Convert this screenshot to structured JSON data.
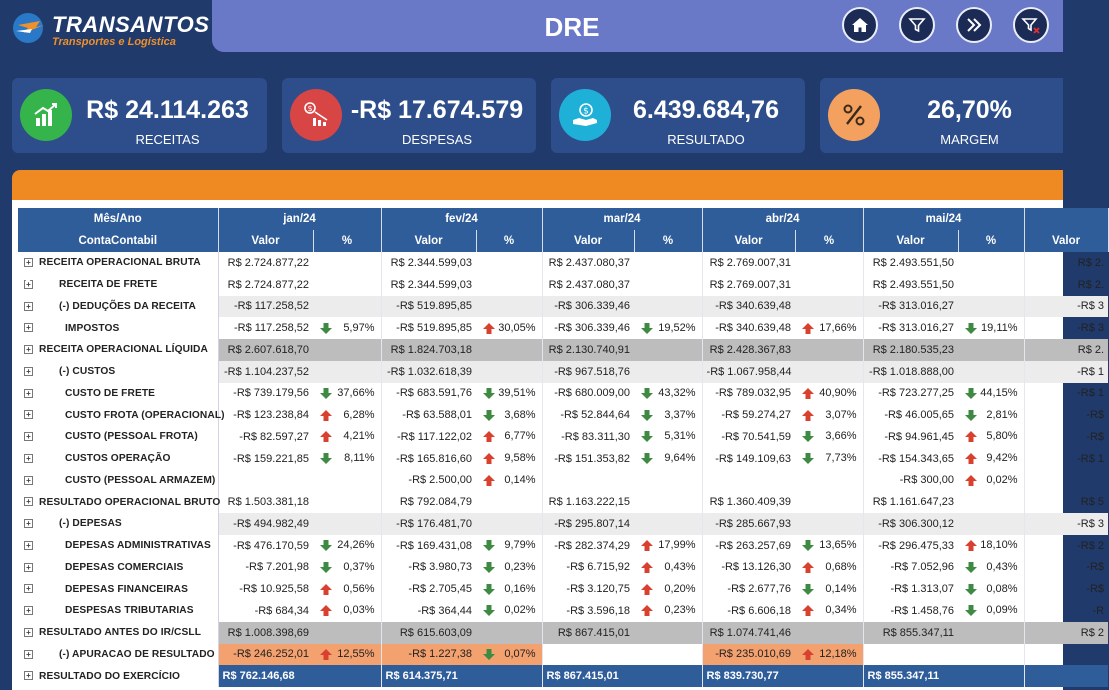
{
  "header": {
    "logo_title": "TRANSANTOS",
    "logo_subtitle": "Transportes e Logística",
    "page_title": "DRE",
    "buttons": [
      "home-icon",
      "filter-icon",
      "next-icon",
      "clear-filter-icon"
    ]
  },
  "kpis": [
    {
      "value": "R$ 24.114.263",
      "label": "RECEITAS",
      "icon": "revenue-chart-icon",
      "color": "#34b44a"
    },
    {
      "value": "-R$ 17.674.579",
      "label": "DESPESAS",
      "icon": "expense-chart-icon",
      "color": "#d84545"
    },
    {
      "value": "6.439.684,76",
      "label": "RESULTADO",
      "icon": "money-hand-icon",
      "color": "#1fb0d8"
    },
    {
      "value": "26,70%",
      "label": "MARGEM",
      "icon": "percent-icon",
      "color": "#f4a160"
    }
  ],
  "table": {
    "corner_top": "Mês/Ano",
    "corner_bottom": "ContaContabil",
    "months": [
      "jan/24",
      "fev/24",
      "mar/24",
      "abr/24",
      "mai/24",
      ""
    ],
    "sub_value": "Valor",
    "sub_pct": "%",
    "rows": [
      {
        "label": "RECEITA OPERACIONAL BRUTA",
        "indent": 0,
        "style": "normal",
        "cells": [
          [
            "R$ 2.724.877,22",
            "",
            ""
          ],
          [
            "R$ 2.344.599,03",
            "",
            ""
          ],
          [
            "R$ 2.437.080,37",
            "",
            ""
          ],
          [
            "R$ 2.769.007,31",
            "",
            ""
          ],
          [
            "R$ 2.493.551,50",
            "",
            ""
          ],
          [
            "R$ 2.",
            "",
            ""
          ]
        ]
      },
      {
        "label": "RECEITA DE FRETE",
        "indent": 1,
        "style": "normal",
        "cells": [
          [
            "R$ 2.724.877,22",
            "",
            ""
          ],
          [
            "R$ 2.344.599,03",
            "",
            ""
          ],
          [
            "R$ 2.437.080,37",
            "",
            ""
          ],
          [
            "R$ 2.769.007,31",
            "",
            ""
          ],
          [
            "R$ 2.493.551,50",
            "",
            ""
          ],
          [
            "R$ 2.",
            "",
            ""
          ]
        ]
      },
      {
        "label": "(-) DEDUÇÕES DA RECEITA",
        "indent": 1,
        "style": "alt",
        "cells": [
          [
            "-R$ 117.258,52",
            "",
            ""
          ],
          [
            "-R$ 519.895,85",
            "",
            ""
          ],
          [
            "-R$ 306.339,46",
            "",
            ""
          ],
          [
            "-R$ 340.639,48",
            "",
            ""
          ],
          [
            "-R$ 313.016,27",
            "",
            ""
          ],
          [
            "-R$ 3",
            "",
            ""
          ]
        ]
      },
      {
        "label": "IMPOSTOS",
        "indent": 2,
        "style": "normal",
        "cells": [
          [
            "-R$ 117.258,52",
            "down",
            "5,97%"
          ],
          [
            "-R$ 519.895,85",
            "up",
            "30,05%"
          ],
          [
            "-R$ 306.339,46",
            "down",
            "19,52%"
          ],
          [
            "-R$ 340.639,48",
            "up",
            "17,66%"
          ],
          [
            "-R$ 313.016,27",
            "down",
            "19,11%"
          ],
          [
            "-R$ 3",
            "",
            ""
          ]
        ]
      },
      {
        "label": "RECEITA OPERACIONAL LÍQUIDA",
        "indent": 0,
        "style": "bold",
        "cells": [
          [
            "R$ 2.607.618,70",
            "",
            ""
          ],
          [
            "R$ 1.824.703,18",
            "",
            ""
          ],
          [
            "R$ 2.130.740,91",
            "",
            ""
          ],
          [
            "R$ 2.428.367,83",
            "",
            ""
          ],
          [
            "R$ 2.180.535,23",
            "",
            ""
          ],
          [
            "R$ 2.",
            "",
            ""
          ]
        ]
      },
      {
        "label": "(-) CUSTOS",
        "indent": 1,
        "style": "alt",
        "cells": [
          [
            "-R$ 1.104.237,52",
            "",
            ""
          ],
          [
            "-R$ 1.032.618,39",
            "",
            ""
          ],
          [
            "-R$ 967.518,76",
            "",
            ""
          ],
          [
            "-R$ 1.067.958,44",
            "",
            ""
          ],
          [
            "-R$ 1.018.888,00",
            "",
            ""
          ],
          [
            "-R$ 1",
            "",
            ""
          ]
        ]
      },
      {
        "label": "CUSTO DE FRETE",
        "indent": 2,
        "style": "normal",
        "cells": [
          [
            "-R$ 739.179,56",
            "down",
            "37,66%"
          ],
          [
            "-R$ 683.591,76",
            "down",
            "39,51%"
          ],
          [
            "-R$ 680.009,00",
            "down",
            "43,32%"
          ],
          [
            "-R$ 789.032,95",
            "up",
            "40,90%"
          ],
          [
            "-R$ 723.277,25",
            "down",
            "44,15%"
          ],
          [
            "-R$ 1",
            "",
            ""
          ]
        ]
      },
      {
        "label": "CUSTO FROTA (OPERACIONAL)",
        "indent": 2,
        "style": "normal",
        "cells": [
          [
            "-R$ 123.238,84",
            "up",
            "6,28%"
          ],
          [
            "-R$ 63.588,01",
            "down",
            "3,68%"
          ],
          [
            "-R$ 52.844,64",
            "down",
            "3,37%"
          ],
          [
            "-R$ 59.274,27",
            "up",
            "3,07%"
          ],
          [
            "-R$ 46.005,65",
            "down",
            "2,81%"
          ],
          [
            "-R$",
            "",
            ""
          ]
        ]
      },
      {
        "label": "CUSTO (PESSOAL FROTA)",
        "indent": 2,
        "style": "normal",
        "cells": [
          [
            "-R$ 82.597,27",
            "up",
            "4,21%"
          ],
          [
            "-R$ 117.122,02",
            "up",
            "6,77%"
          ],
          [
            "-R$ 83.311,30",
            "down",
            "5,31%"
          ],
          [
            "-R$ 70.541,59",
            "down",
            "3,66%"
          ],
          [
            "-R$ 94.961,45",
            "up",
            "5,80%"
          ],
          [
            "-R$",
            "",
            ""
          ]
        ]
      },
      {
        "label": "CUSTOS OPERAÇÃO",
        "indent": 2,
        "style": "normal",
        "cells": [
          [
            "-R$ 159.221,85",
            "down",
            "8,11%"
          ],
          [
            "-R$ 165.816,60",
            "up",
            "9,58%"
          ],
          [
            "-R$ 151.353,82",
            "down",
            "9,64%"
          ],
          [
            "-R$ 149.109,63",
            "down",
            "7,73%"
          ],
          [
            "-R$ 154.343,65",
            "up",
            "9,42%"
          ],
          [
            "-R$ 1",
            "",
            ""
          ]
        ]
      },
      {
        "label": "CUSTO (PESSOAL ARMAZEM)",
        "indent": 2,
        "style": "normal",
        "cells": [
          [
            "",
            "",
            ""
          ],
          [
            "-R$ 2.500,00",
            "up",
            "0,14%"
          ],
          [
            "",
            "",
            ""
          ],
          [
            "",
            "",
            ""
          ],
          [
            "-R$ 300,00",
            "up",
            "0,02%"
          ],
          [
            "",
            "",
            ""
          ]
        ]
      },
      {
        "label": "RESULTADO OPERACIONAL BRUTO",
        "indent": 0,
        "style": "normal",
        "cells": [
          [
            "R$ 1.503.381,18",
            "",
            ""
          ],
          [
            "R$ 792.084,79",
            "",
            ""
          ],
          [
            "R$ 1.163.222,15",
            "",
            ""
          ],
          [
            "R$ 1.360.409,39",
            "",
            ""
          ],
          [
            "R$ 1.161.647,23",
            "",
            ""
          ],
          [
            "R$ 5",
            "",
            ""
          ]
        ]
      },
      {
        "label": "(-) DEPESAS",
        "indent": 1,
        "style": "alt",
        "cells": [
          [
            "-R$ 494.982,49",
            "",
            ""
          ],
          [
            "-R$ 176.481,70",
            "",
            ""
          ],
          [
            "-R$ 295.807,14",
            "",
            ""
          ],
          [
            "-R$ 285.667,93",
            "",
            ""
          ],
          [
            "-R$ 306.300,12",
            "",
            ""
          ],
          [
            "-R$ 3",
            "",
            ""
          ]
        ]
      },
      {
        "label": "DEPESAS ADMINISTRATIVAS",
        "indent": 2,
        "style": "normal",
        "cells": [
          [
            "-R$ 476.170,59",
            "down",
            "24,26%"
          ],
          [
            "-R$ 169.431,08",
            "down",
            "9,79%"
          ],
          [
            "-R$ 282.374,29",
            "up",
            "17,99%"
          ],
          [
            "-R$ 263.257,69",
            "down",
            "13,65%"
          ],
          [
            "-R$ 296.475,33",
            "up",
            "18,10%"
          ],
          [
            "-R$ 2",
            "",
            ""
          ]
        ]
      },
      {
        "label": "DEPESAS COMERCIAIS",
        "indent": 2,
        "style": "normal",
        "cells": [
          [
            "-R$ 7.201,98",
            "down",
            "0,37%"
          ],
          [
            "-R$ 3.980,73",
            "down",
            "0,23%"
          ],
          [
            "-R$ 6.715,92",
            "up",
            "0,43%"
          ],
          [
            "-R$ 13.126,30",
            "up",
            "0,68%"
          ],
          [
            "-R$ 7.052,96",
            "down",
            "0,43%"
          ],
          [
            "-R$",
            "",
            ""
          ]
        ]
      },
      {
        "label": "DEPESAS FINANCEIRAS",
        "indent": 2,
        "style": "normal",
        "cells": [
          [
            "-R$ 10.925,58",
            "up",
            "0,56%"
          ],
          [
            "-R$ 2.705,45",
            "down",
            "0,16%"
          ],
          [
            "-R$ 3.120,75",
            "up",
            "0,20%"
          ],
          [
            "-R$ 2.677,76",
            "down",
            "0,14%"
          ],
          [
            "-R$ 1.313,07",
            "down",
            "0,08%"
          ],
          [
            "-R$",
            "",
            ""
          ]
        ]
      },
      {
        "label": "DESPESAS TRIBUTARIAS",
        "indent": 2,
        "style": "normal",
        "cells": [
          [
            "-R$ 684,34",
            "up",
            "0,03%"
          ],
          [
            "-R$ 364,44",
            "down",
            "0,02%"
          ],
          [
            "-R$ 3.596,18",
            "up",
            "0,23%"
          ],
          [
            "-R$ 6.606,18",
            "up",
            "0,34%"
          ],
          [
            "-R$ 1.458,76",
            "down",
            "0,09%"
          ],
          [
            "-R",
            "",
            ""
          ]
        ]
      },
      {
        "label": "RESULTADO ANTES DO IR/CSLL",
        "indent": 0,
        "style": "bold",
        "cells": [
          [
            "R$ 1.008.398,69",
            "",
            ""
          ],
          [
            "R$ 615.603,09",
            "",
            ""
          ],
          [
            "R$ 867.415,01",
            "",
            ""
          ],
          [
            "R$ 1.074.741,46",
            "",
            ""
          ],
          [
            "R$ 855.347,11",
            "",
            ""
          ],
          [
            "R$ 2",
            "",
            ""
          ]
        ]
      },
      {
        "label": "(-) APURACAO DE RESULTADO",
        "indent": 1,
        "style": "normal",
        "hl": [
          0,
          1,
          3
        ],
        "cells": [
          [
            "-R$ 246.252,01",
            "up",
            "12,55%"
          ],
          [
            "-R$ 1.227,38",
            "down",
            "0,07%"
          ],
          [
            "",
            "",
            ""
          ],
          [
            "-R$ 235.010,69",
            "up",
            "12,18%"
          ],
          [
            "",
            "",
            ""
          ],
          [
            "",
            "",
            ""
          ]
        ]
      },
      {
        "label": "RESULTADO DO EXERCÍCIO",
        "indent": 0,
        "style": "final",
        "cells": [
          [
            "R$ 762.146,68",
            "",
            ""
          ],
          [
            "R$ 614.375,71",
            "",
            ""
          ],
          [
            "R$ 867.415,01",
            "",
            ""
          ],
          [
            "R$ 839.730,77",
            "",
            ""
          ],
          [
            "R$ 855.347,11",
            "",
            ""
          ],
          [
            "",
            "",
            ""
          ]
        ]
      }
    ]
  }
}
